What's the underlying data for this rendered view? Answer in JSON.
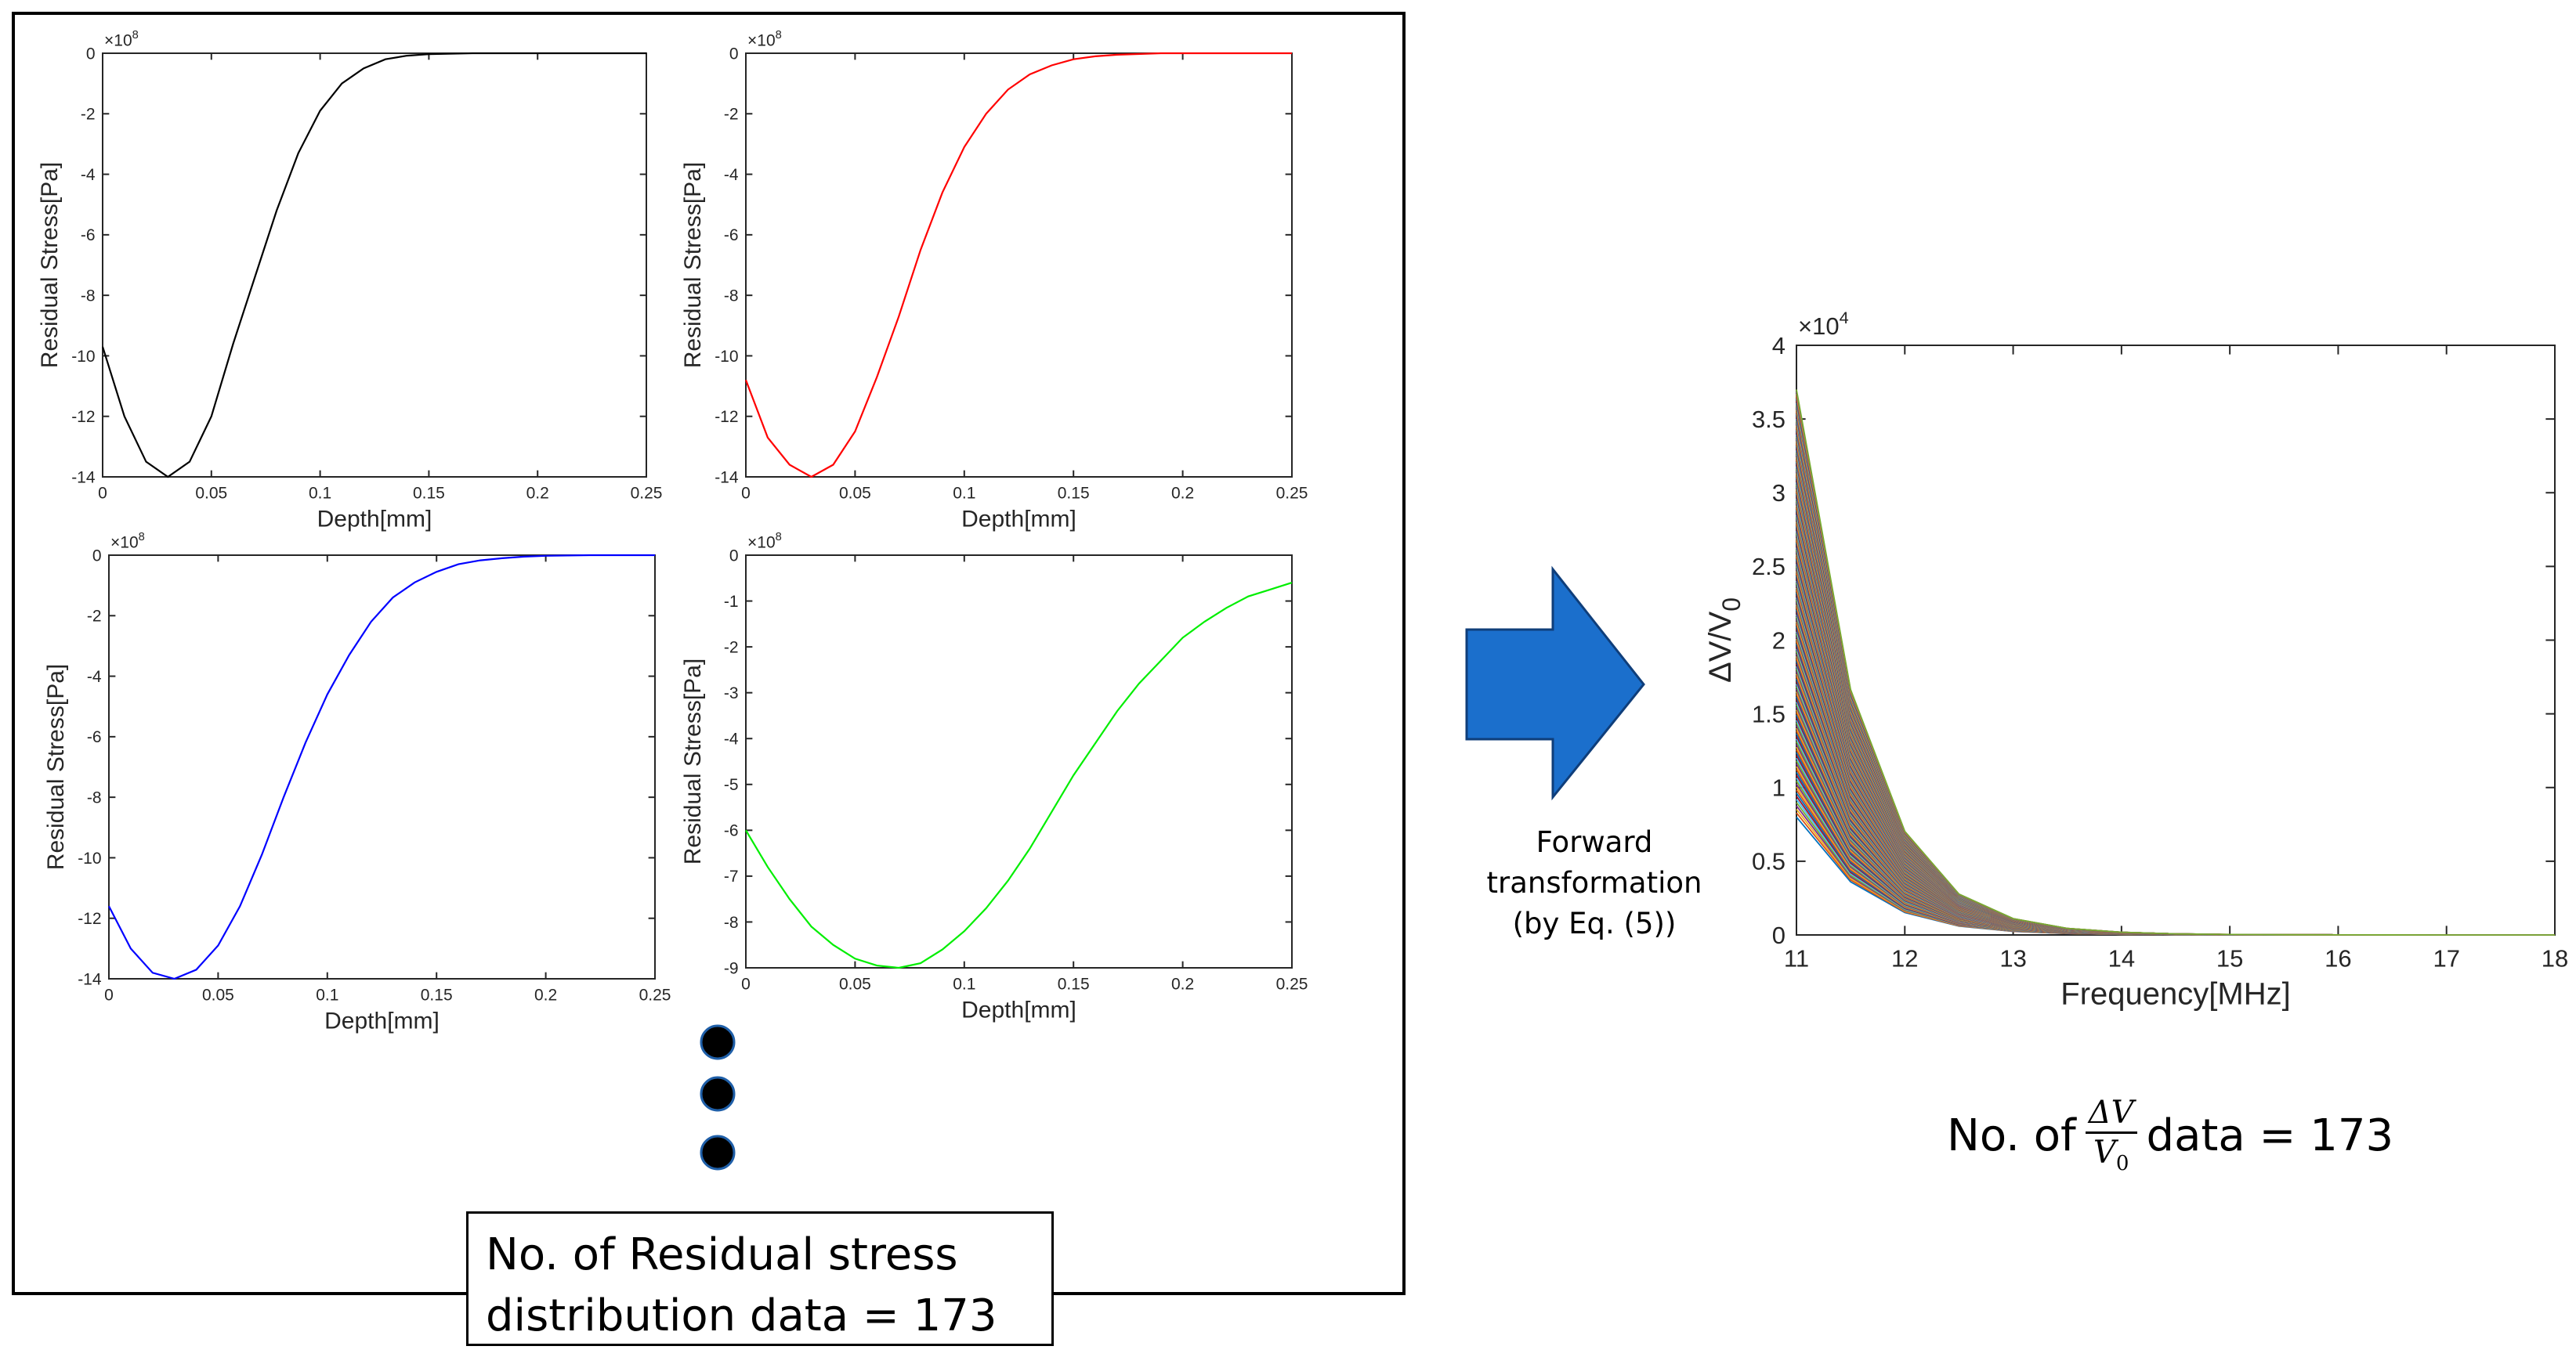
{
  "colors": {
    "black": "#000000",
    "red": "#ff0000",
    "blue": "#0000ff",
    "green": "#00ee00",
    "arrow": "#1b6fcc"
  },
  "chart_data": [
    {
      "type": "line",
      "name": "stress-plot-1",
      "title": "",
      "xlabel": "Depth[mm]",
      "ylabel": "Residual Stress[Pa]",
      "multiplier_base": "×10",
      "multiplier_exp": "8",
      "xlim": [
        0,
        0.25
      ],
      "ylim": [
        -14,
        0
      ],
      "xticks": [
        0,
        0.05,
        0.1,
        0.15,
        0.2,
        0.25
      ],
      "xtick_labels": [
        "0",
        "0.05",
        "0.1",
        "0.15",
        "0.2",
        "0.25"
      ],
      "yticks": [
        0,
        -2,
        -4,
        -6,
        -8,
        -10,
        -12,
        -14
      ],
      "ytick_labels": [
        "0",
        "-2",
        "-4",
        "-6",
        "-8",
        "-10",
        "-12",
        "-14"
      ],
      "series": [
        {
          "name": "profile",
          "color": "#000000",
          "x": [
            0,
            0.01,
            0.02,
            0.03,
            0.04,
            0.05,
            0.06,
            0.07,
            0.08,
            0.09,
            0.1,
            0.11,
            0.12,
            0.13,
            0.14,
            0.15,
            0.17,
            0.2,
            0.25
          ],
          "y": [
            -9.7,
            -12,
            -13.5,
            -14,
            -13.5,
            -12,
            -9.6,
            -7.4,
            -5.2,
            -3.3,
            -1.9,
            -1,
            -0.5,
            -0.2,
            -0.08,
            -0.03,
            0,
            0,
            0
          ]
        }
      ]
    },
    {
      "type": "line",
      "name": "stress-plot-2",
      "title": "",
      "xlabel": "Depth[mm]",
      "ylabel": "Residual Stress[Pa]",
      "multiplier_base": "×10",
      "multiplier_exp": "8",
      "xlim": [
        0,
        0.25
      ],
      "ylim": [
        -14,
        0
      ],
      "xticks": [
        0,
        0.05,
        0.1,
        0.15,
        0.2,
        0.25
      ],
      "xtick_labels": [
        "0",
        "0.05",
        "0.1",
        "0.15",
        "0.2",
        "0.25"
      ],
      "yticks": [
        0,
        -2,
        -4,
        -6,
        -8,
        -10,
        -12,
        -14
      ],
      "ytick_labels": [
        "0",
        "-2",
        "-4",
        "-6",
        "-8",
        "-10",
        "-12",
        "-14"
      ],
      "series": [
        {
          "name": "profile",
          "color": "#ff0000",
          "x": [
            0,
            0.01,
            0.02,
            0.03,
            0.04,
            0.05,
            0.06,
            0.07,
            0.08,
            0.09,
            0.1,
            0.11,
            0.12,
            0.13,
            0.14,
            0.15,
            0.16,
            0.17,
            0.19,
            0.22,
            0.25
          ],
          "y": [
            -10.8,
            -12.7,
            -13.6,
            -14,
            -13.6,
            -12.5,
            -10.7,
            -8.7,
            -6.5,
            -4.6,
            -3.1,
            -2,
            -1.2,
            -0.7,
            -0.4,
            -0.2,
            -0.1,
            -0.05,
            0,
            0,
            0
          ]
        }
      ]
    },
    {
      "type": "line",
      "name": "stress-plot-3",
      "title": "",
      "xlabel": "Depth[mm]",
      "ylabel": "Residual Stress[Pa]",
      "multiplier_base": "×10",
      "multiplier_exp": "8",
      "xlim": [
        0,
        0.25
      ],
      "ylim": [
        -14,
        0
      ],
      "xticks": [
        0,
        0.05,
        0.1,
        0.15,
        0.2,
        0.25
      ],
      "xtick_labels": [
        "0",
        "0.05",
        "0.1",
        "0.15",
        "0.2",
        "0.25"
      ],
      "yticks": [
        0,
        -2,
        -4,
        -6,
        -8,
        -10,
        -12,
        -14
      ],
      "ytick_labels": [
        "0",
        "-2",
        "-4",
        "-6",
        "-8",
        "-10",
        "-12",
        "-14"
      ],
      "series": [
        {
          "name": "profile",
          "color": "#0000ff",
          "x": [
            0,
            0.01,
            0.02,
            0.03,
            0.04,
            0.05,
            0.06,
            0.07,
            0.08,
            0.09,
            0.1,
            0.11,
            0.12,
            0.13,
            0.14,
            0.15,
            0.16,
            0.17,
            0.18,
            0.19,
            0.2,
            0.22,
            0.25
          ],
          "y": [
            -11.6,
            -13,
            -13.8,
            -14,
            -13.7,
            -12.9,
            -11.6,
            -9.9,
            -8,
            -6.2,
            -4.6,
            -3.3,
            -2.2,
            -1.4,
            -0.9,
            -0.55,
            -0.3,
            -0.17,
            -0.1,
            -0.05,
            -0.02,
            0,
            0
          ]
        }
      ]
    },
    {
      "type": "line",
      "name": "stress-plot-4",
      "title": "",
      "xlabel": "Depth[mm]",
      "ylabel": "Residual Stress[Pa]",
      "multiplier_base": "×10",
      "multiplier_exp": "8",
      "xlim": [
        0,
        0.25
      ],
      "ylim": [
        -9,
        0
      ],
      "xticks": [
        0,
        0.05,
        0.1,
        0.15,
        0.2,
        0.25
      ],
      "xtick_labels": [
        "0",
        "0.05",
        "0.1",
        "0.15",
        "0.2",
        "0.25"
      ],
      "yticks": [
        0,
        -1,
        -2,
        -3,
        -4,
        -5,
        -6,
        -7,
        -8,
        -9
      ],
      "ytick_labels": [
        "0",
        "-1",
        "-2",
        "-3",
        "-4",
        "-5",
        "-6",
        "-7",
        "-8",
        "-9"
      ],
      "series": [
        {
          "name": "profile",
          "color": "#00ee00",
          "x": [
            0,
            0.01,
            0.02,
            0.03,
            0.04,
            0.05,
            0.06,
            0.07,
            0.08,
            0.09,
            0.1,
            0.11,
            0.12,
            0.13,
            0.14,
            0.15,
            0.16,
            0.17,
            0.18,
            0.19,
            0.2,
            0.21,
            0.22,
            0.23,
            0.24,
            0.25
          ],
          "y": [
            -6,
            -6.8,
            -7.5,
            -8.1,
            -8.5,
            -8.8,
            -8.95,
            -9,
            -8.9,
            -8.6,
            -8.2,
            -7.7,
            -7.1,
            -6.4,
            -5.6,
            -4.8,
            -4.1,
            -3.4,
            -2.8,
            -2.3,
            -1.8,
            -1.45,
            -1.15,
            -0.9,
            -0.75,
            -0.6
          ]
        }
      ]
    },
    {
      "type": "line",
      "name": "dvv-plot",
      "title": "",
      "xlabel": "Frequency[MHz]",
      "ylabel": "ΔV/V",
      "ylabel_sub": "0",
      "multiplier_base": "×10",
      "multiplier_exp": "4",
      "xlim": [
        11,
        18
      ],
      "ylim": [
        0,
        4
      ],
      "xticks": [
        11,
        12,
        13,
        14,
        15,
        16,
        17,
        18
      ],
      "xtick_labels": [
        "11",
        "12",
        "13",
        "14",
        "15",
        "16",
        "17",
        "18"
      ],
      "yticks": [
        0,
        0.5,
        1,
        1.5,
        2,
        2.5,
        3,
        3.5,
        4
      ],
      "ytick_labels": [
        "0",
        "0.5",
        "1",
        "1.5",
        "2",
        "2.5",
        "3",
        "3.5",
        "4"
      ],
      "x": [
        11,
        11.5,
        12,
        12.5,
        13,
        13.5,
        14,
        14.5,
        15,
        16,
        17,
        18
      ],
      "decay": [
        1,
        0.45,
        0.19,
        0.075,
        0.03,
        0.012,
        0.005,
        0.002,
        0.0008,
        0.0001,
        0,
        0
      ],
      "series_count": 173,
      "start_range": [
        0.8,
        3.7
      ],
      "palette": [
        "#0072BD",
        "#D95319",
        "#EDB120",
        "#7E2F8E",
        "#77AC30",
        "#4DBEEE",
        "#A2142F"
      ]
    }
  ],
  "arrow_caption": [
    "Forward",
    "transformation",
    "(by Eq. (5))"
  ],
  "left_caption": [
    "No. of Residual stress",
    "distribution data = 173"
  ],
  "right_caption": {
    "prefix": "No. of",
    "frac_num": "ΔV",
    "frac_den": "V",
    "frac_den_sub": "0",
    "suffix": "data = 173"
  }
}
